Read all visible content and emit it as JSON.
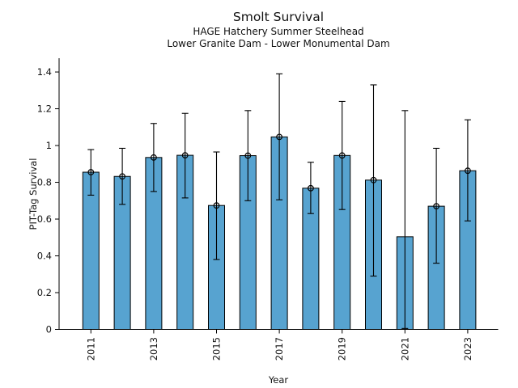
{
  "header": {
    "title": "Smolt Survival",
    "subtitle1": "HAGE Hatchery Summer Steelhead",
    "subtitle2": "Lower Granite Dam - Lower Monumental Dam"
  },
  "chart_data": {
    "type": "bar",
    "title": "Smolt Survival",
    "subtitle_lines": [
      "HAGE Hatchery Summer Steelhead",
      "Lower Granite Dam - Lower Monumental Dam"
    ],
    "xlabel": "Year",
    "ylabel": "PIT-Tag Survival",
    "x": [
      2011,
      2012,
      2013,
      2014,
      2015,
      2016,
      2017,
      2018,
      2019,
      2020,
      2021,
      2022,
      2023
    ],
    "values": [
      0.855,
      0.832,
      0.935,
      0.947,
      0.674,
      0.945,
      1.047,
      0.768,
      0.946,
      0.812,
      0.504,
      0.67,
      0.863
    ],
    "error_low": [
      0.73,
      0.68,
      0.75,
      0.715,
      0.38,
      0.7,
      0.705,
      0.63,
      0.652,
      0.29,
      0.005,
      0.36,
      0.59
    ],
    "error_high": [
      0.978,
      0.985,
      1.12,
      1.175,
      0.965,
      1.19,
      1.39,
      0.909,
      1.24,
      1.33,
      1.19,
      0.985,
      1.14
    ],
    "point_marker": [
      true,
      true,
      true,
      true,
      true,
      true,
      true,
      true,
      true,
      true,
      false,
      true,
      true
    ],
    "marker": "open-circle",
    "xticks": {
      "values": [
        2011,
        2013,
        2015,
        2017,
        2019,
        2021,
        2023
      ],
      "labels": [
        "2011",
        "2013",
        "2015",
        "2017",
        "2019",
        "2021",
        "2023"
      ],
      "rotation": 90
    },
    "yticks": {
      "values": [
        0,
        0.2,
        0.4,
        0.6,
        0.8,
        1.0,
        1.2,
        1.4
      ],
      "labels": [
        "0",
        "0.2",
        "0.4",
        "0.6",
        "0.8",
        "1",
        "1.2",
        "1.4"
      ]
    },
    "ylim": [
      0,
      1.475
    ],
    "grid": false,
    "legend": null,
    "bar_color": "#57A3D0",
    "bar_edge_color": "#000000",
    "error_color": "#000000",
    "axis_color": "#000000"
  }
}
